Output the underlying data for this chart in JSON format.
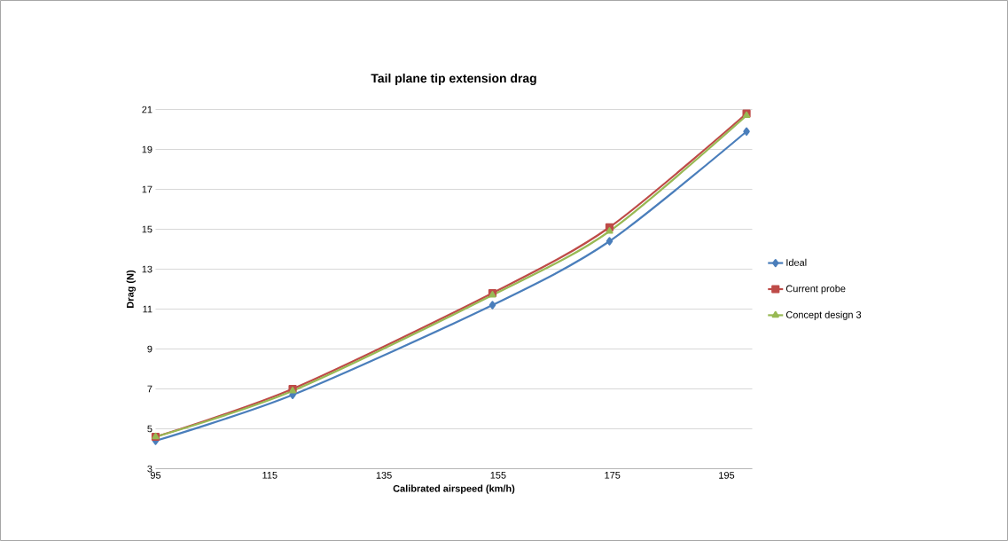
{
  "chart_data": {
    "type": "line",
    "title": "Tail plane tip extension drag",
    "xlabel": "Calibrated airspeed (km/h)",
    "ylabel": "Drag (N)",
    "xlim": [
      95,
      199.5
    ],
    "xticks": [
      95,
      115,
      135,
      155,
      175,
      195
    ],
    "ylim": [
      3,
      21
    ],
    "yticks": [
      3,
      5,
      7,
      9,
      11,
      13,
      15,
      17,
      19,
      21
    ],
    "grid": "y",
    "legend": "right",
    "series": [
      {
        "name": "Ideal",
        "color": "#4a7ebb",
        "marker": "diamond",
        "x": [
          95,
          119,
          154,
          174.5,
          198.5
        ],
        "values": [
          4.4,
          6.7,
          11.2,
          14.4,
          19.9
        ]
      },
      {
        "name": "Current probe",
        "color": "#be4b48",
        "marker": "square",
        "x": [
          95,
          119,
          154,
          174.5,
          198.5
        ],
        "values": [
          4.6,
          7.0,
          11.8,
          15.1,
          20.8
        ]
      },
      {
        "name": "Concept design 3",
        "color": "#98b954",
        "marker": "triangle",
        "x": [
          95,
          119,
          154,
          174.5,
          198.5
        ],
        "values": [
          4.6,
          6.9,
          11.7,
          14.9,
          20.7
        ]
      }
    ]
  }
}
